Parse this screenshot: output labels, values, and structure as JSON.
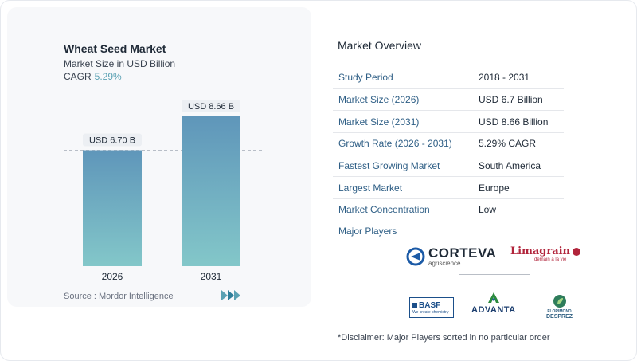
{
  "chart": {
    "title": "Wheat Seed Market",
    "subtitle": "Market Size in USD Billion",
    "cagr_label": "CAGR",
    "cagr_value": "5.29%",
    "source": "Source :  Mordor Intelligence"
  },
  "chart_data": {
    "type": "bar",
    "categories": [
      "2026",
      "2031"
    ],
    "values": [
      6.7,
      8.66
    ],
    "data_labels": [
      "USD 6.70 B",
      "USD 8.66 B"
    ],
    "title": "Wheat Seed Market",
    "ylabel": "Market Size in USD Billion",
    "colors": [
      "#5f96ba",
      "#83c7c9"
    ]
  },
  "overview": {
    "title": "Market Overview",
    "rows": [
      {
        "label": "Study Period",
        "value": "2018 - 2031"
      },
      {
        "label": "Market Size (2026)",
        "value": "USD 6.7 Billion"
      },
      {
        "label": "Market Size (2031)",
        "value": "USD 8.66 Billion"
      },
      {
        "label": "Growth Rate (2026 - 2031)",
        "value": "5.29% CAGR"
      },
      {
        "label": "Fastest Growing Market",
        "value": "South America"
      },
      {
        "label": "Largest Market",
        "value": "Europe"
      },
      {
        "label": "Market Concentration",
        "value": "Low"
      }
    ]
  },
  "players": {
    "title": "Major Players",
    "corteva": "CORTEVA",
    "corteva_sub": "agriscience",
    "limagrain": "Limagrain",
    "limagrain_sub": "demain à la vie",
    "basf": "BASF",
    "basf_sub": "We create chemistry",
    "advanta": "ADVANTA",
    "florimond_1": "FLORIMOND",
    "florimond_2": "DESPREZ"
  },
  "disclaimer": "*Disclaimer: Major Players sorted in no particular order"
}
